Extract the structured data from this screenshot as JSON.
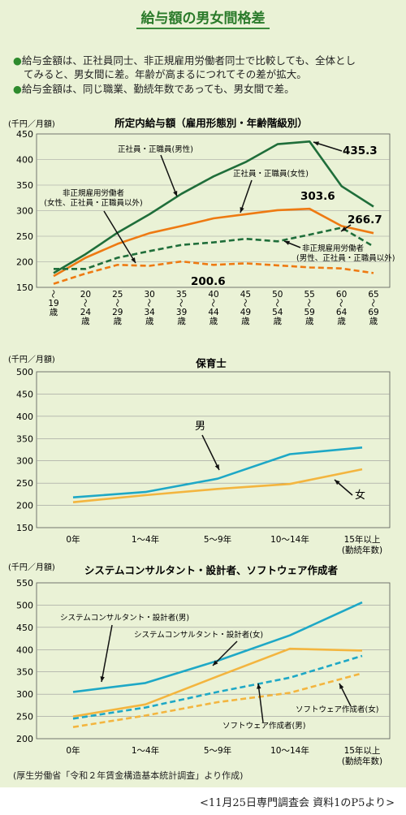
{
  "title": "給与額の男女間格差",
  "bullets": [
    {
      "line1": "給与金額は、正社員同士、非正規雇用労働者同士で比較しても、全体とし",
      "line2": "てみると、男女間に差。年齢が高まるにつれてその差が拡大。"
    },
    {
      "line1": "給与金額は、同じ職業、勤続年数であっても、男女間で差。",
      "line2": ""
    }
  ],
  "bullet_mark": "●",
  "source": "(厚生労働省「令和２年賃金構造基本統計調査」より作成)",
  "reference": "<11月25日専門調査会 資料1のP5より>",
  "colors": {
    "dark_green": "#1f6e3a",
    "orange": "#ee7a12",
    "teal": "#1ea8c6",
    "yellow": "#f3b53f"
  },
  "chart_data": [
    {
      "type": "line",
      "title": "所定内給与額（雇用形態別・年齢階級別）",
      "ylabel": "(千円／月額)",
      "ylim": [
        150,
        450
      ],
      "yticks": [
        150,
        200,
        250,
        300,
        350,
        400,
        450
      ],
      "categories": [
        [
          "〜",
          "19",
          "歳"
        ],
        [
          "20",
          "〜",
          "24",
          "歳"
        ],
        [
          "25",
          "〜",
          "29",
          "歳"
        ],
        [
          "30",
          "〜",
          "34",
          "歳"
        ],
        [
          "35",
          "〜",
          "39",
          "歳"
        ],
        [
          "40",
          "〜",
          "44",
          "歳"
        ],
        [
          "45",
          "〜",
          "49",
          "歳"
        ],
        [
          "50",
          "〜",
          "54",
          "歳"
        ],
        [
          "55",
          "〜",
          "59",
          "歳"
        ],
        [
          "60",
          "〜",
          "64",
          "歳"
        ],
        [
          "65",
          "〜",
          "69",
          "歳"
        ]
      ],
      "series": [
        {
          "name": "正社員・正職員(男性)",
          "color": "#1f6e3a",
          "dash": false,
          "values": [
            178,
            215,
            257,
            293,
            333,
            367,
            395,
            430,
            435.3,
            348,
            308
          ]
        },
        {
          "name": "正社員・正職員(女性)",
          "color": "#ee7a12",
          "dash": false,
          "values": [
            172,
            208,
            235,
            256,
            270,
            285,
            293,
            301,
            303.6,
            270,
            256
          ]
        },
        {
          "name": "非正規雇用労働者(男性、正社員・正職員以外)",
          "name_lines": [
            "非正規雇用労働者",
            "(男性、正社員・正職員以外)"
          ],
          "color": "#1f6e3a",
          "dash": true,
          "values": [
            186,
            186,
            208,
            221,
            233,
            238,
            245,
            240,
            253,
            266.7,
            230
          ]
        },
        {
          "name": "非正規雇用労働者(女性、正社員・正職員以外)",
          "name_lines": [
            "非正規雇用労働者",
            "(女性、正社員・正職員以外)"
          ],
          "color": "#ee7a12",
          "dash": true,
          "values": [
            157,
            177,
            194,
            192,
            200.6,
            194,
            197,
            193,
            189,
            187,
            178
          ]
        }
      ],
      "value_labels": [
        {
          "text": "435.3",
          "series": 0,
          "index": 8
        },
        {
          "text": "303.6",
          "series": 1,
          "index": 8
        },
        {
          "text": "266.7",
          "series": 2,
          "index": 9
        },
        {
          "text": "200.6",
          "series": 3,
          "index": 4
        }
      ]
    },
    {
      "type": "line",
      "title": "保育士",
      "ylabel": "(千円／月額)",
      "ylim": [
        150,
        500
      ],
      "yticks": [
        150,
        200,
        250,
        300,
        350,
        400,
        450,
        500
      ],
      "categories": [
        "0年",
        "1〜4年",
        "5〜9年",
        "10〜14年",
        "15年以上"
      ],
      "xlabel": "(勤続年数)",
      "series": [
        {
          "name": "男",
          "color": "#1ea8c6",
          "dash": false,
          "values": [
            218,
            230,
            260,
            315,
            330
          ]
        },
        {
          "name": "女",
          "color": "#f3b53f",
          "dash": false,
          "values": [
            207,
            223,
            237,
            248,
            281
          ]
        }
      ]
    },
    {
      "type": "line",
      "title": "システムコンサルタント・設計者、ソフトウェア作成者",
      "ylabel": "(千円／月額)",
      "ylim": [
        200,
        550
      ],
      "yticks": [
        200,
        250,
        300,
        350,
        400,
        450,
        500,
        550
      ],
      "categories": [
        "0年",
        "1〜4年",
        "5〜9年",
        "10〜14年",
        "15年以上"
      ],
      "xlabel": "(勤続年数)",
      "series": [
        {
          "name": "システムコンサルタント・設計者(男)",
          "color": "#1ea8c6",
          "dash": false,
          "values": [
            305,
            325,
            375,
            432,
            506
          ]
        },
        {
          "name": "システムコンサルタント・設計者(女)",
          "color": "#f3b53f",
          "dash": false,
          "values": [
            250,
            277,
            340,
            402,
            398
          ]
        },
        {
          "name": "ソフトウェア作成者(男)",
          "color": "#1ea8c6",
          "dash": true,
          "values": [
            245,
            270,
            305,
            337,
            386
          ]
        },
        {
          "name": "ソフトウェア作成者(女)",
          "color": "#f3b53f",
          "dash": true,
          "values": [
            226,
            252,
            282,
            303,
            347
          ]
        }
      ]
    }
  ]
}
